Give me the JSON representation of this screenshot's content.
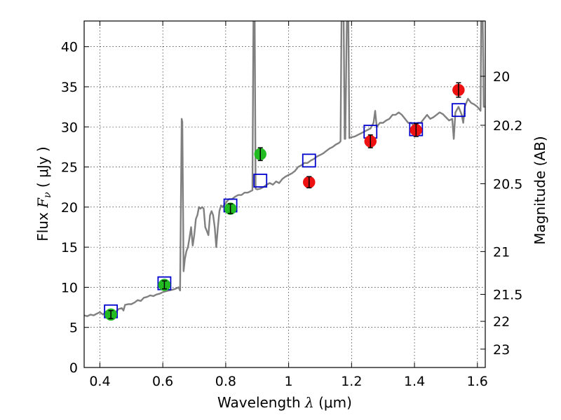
{
  "chart_data": {
    "type": "scatter",
    "title": "",
    "xlabel": {
      "prefix": "Wavelength ",
      "symbol": "λ",
      "unit_open": " (",
      "unit": "μm",
      "unit_close": ")"
    },
    "ylabel": {
      "prefix": "Flux ",
      "symbol": "F",
      "subscript": "ν",
      "unit_open": " ( ",
      "unit": "μJy",
      "unit_close": " )"
    },
    "y2label": "Magnitude (AB)",
    "xlim": [
      0.35,
      1.625
    ],
    "ylim": [
      0,
      43.2
    ],
    "grid": true,
    "colors": {
      "spectrum": "#808080",
      "model": "#0000cc",
      "green": "#22bb22",
      "red": "#ee1111",
      "errorbar": "#000000"
    },
    "x_ticks": [
      {
        "value": 0.4,
        "label": "0.4"
      },
      {
        "value": 0.6,
        "label": "0.6"
      },
      {
        "value": 0.8,
        "label": "0.8"
      },
      {
        "value": 1.0,
        "label": "1"
      },
      {
        "value": 1.2,
        "label": "1.2"
      },
      {
        "value": 1.4,
        "label": "1.4"
      },
      {
        "value": 1.6,
        "label": "1.6"
      }
    ],
    "y_ticks": [
      {
        "value": 0,
        "label": "0"
      },
      {
        "value": 5,
        "label": "5"
      },
      {
        "value": 10,
        "label": "10"
      },
      {
        "value": 15,
        "label": "15"
      },
      {
        "value": 20,
        "label": "20"
      },
      {
        "value": 25,
        "label": "25"
      },
      {
        "value": 30,
        "label": "30"
      },
      {
        "value": 35,
        "label": "35"
      },
      {
        "value": 40,
        "label": "40"
      }
    ],
    "y2_ticks": [
      {
        "mag": 20,
        "label": "20"
      },
      {
        "mag": 20.2,
        "label": "20.2"
      },
      {
        "mag": 20.5,
        "label": "20.5"
      },
      {
        "mag": 21,
        "label": "21"
      },
      {
        "mag": 21.5,
        "label": "21.5"
      },
      {
        "mag": 22,
        "label": "22"
      },
      {
        "mag": 23,
        "label": "23"
      }
    ],
    "series": [
      {
        "name": "spectrum",
        "kind": "line",
        "points": [
          [
            0.35,
            6.5
          ],
          [
            0.36,
            6.4
          ],
          [
            0.37,
            6.6
          ],
          [
            0.38,
            6.5
          ],
          [
            0.39,
            6.7
          ],
          [
            0.4,
            6.9
          ],
          [
            0.41,
            6.6
          ],
          [
            0.42,
            7.0
          ],
          [
            0.43,
            6.8
          ],
          [
            0.44,
            7.1
          ],
          [
            0.45,
            6.9
          ],
          [
            0.46,
            7.3
          ],
          [
            0.47,
            7.4
          ],
          [
            0.475,
            7.1
          ],
          [
            0.48,
            7.8
          ],
          [
            0.49,
            7.9
          ],
          [
            0.5,
            7.9
          ],
          [
            0.51,
            8.1
          ],
          [
            0.52,
            8.4
          ],
          [
            0.53,
            8.3
          ],
          [
            0.54,
            8.7
          ],
          [
            0.55,
            8.8
          ],
          [
            0.56,
            9.0
          ],
          [
            0.57,
            8.9
          ],
          [
            0.58,
            9.1
          ],
          [
            0.59,
            9.2
          ],
          [
            0.6,
            9.4
          ],
          [
            0.61,
            9.5
          ],
          [
            0.62,
            9.6
          ],
          [
            0.63,
            9.7
          ],
          [
            0.64,
            9.8
          ],
          [
            0.65,
            10.0
          ],
          [
            0.655,
            9.6
          ],
          [
            0.66,
            31.0
          ],
          [
            0.662,
            30.6
          ],
          [
            0.666,
            12.0
          ],
          [
            0.67,
            13.5
          ],
          [
            0.675,
            14.5
          ],
          [
            0.68,
            15.0
          ],
          [
            0.685,
            16.2
          ],
          [
            0.69,
            17.5
          ],
          [
            0.695,
            15.2
          ],
          [
            0.7,
            16.5
          ],
          [
            0.705,
            18.5
          ],
          [
            0.71,
            19.0
          ],
          [
            0.715,
            20.0
          ],
          [
            0.72,
            19.8
          ],
          [
            0.725,
            20.0
          ],
          [
            0.73,
            19.8
          ],
          [
            0.735,
            17.5
          ],
          [
            0.74,
            17.0
          ],
          [
            0.745,
            16.5
          ],
          [
            0.75,
            19.0
          ],
          [
            0.755,
            19.5
          ],
          [
            0.76,
            19.0
          ],
          [
            0.765,
            17.5
          ],
          [
            0.77,
            15.0
          ],
          [
            0.775,
            17.5
          ],
          [
            0.78,
            19.5
          ],
          [
            0.785,
            20.2
          ],
          [
            0.79,
            20.0
          ],
          [
            0.8,
            20.5
          ],
          [
            0.81,
            21.0
          ],
          [
            0.82,
            21.0
          ],
          [
            0.83,
            21.3
          ],
          [
            0.84,
            21.5
          ],
          [
            0.85,
            21.5
          ],
          [
            0.86,
            21.8
          ],
          [
            0.87,
            21.8
          ],
          [
            0.88,
            22.0
          ],
          [
            0.885,
            22.1
          ],
          [
            0.888,
            43.2
          ],
          [
            0.892,
            43.2
          ],
          [
            0.895,
            22.3
          ],
          [
            0.9,
            22.2
          ],
          [
            0.91,
            22.3
          ],
          [
            0.92,
            22.5
          ],
          [
            0.93,
            22.8
          ],
          [
            0.94,
            23.0
          ],
          [
            0.95,
            22.8
          ],
          [
            0.96,
            23.2
          ],
          [
            0.97,
            23.0
          ],
          [
            0.98,
            23.5
          ],
          [
            0.99,
            23.8
          ],
          [
            1.0,
            24.0
          ],
          [
            1.01,
            24.2
          ],
          [
            1.02,
            24.5
          ],
          [
            1.03,
            25.0
          ],
          [
            1.04,
            25.2
          ],
          [
            1.05,
            25.5
          ],
          [
            1.06,
            25.5
          ],
          [
            1.07,
            25.8
          ],
          [
            1.08,
            26.0
          ],
          [
            1.09,
            26.3
          ],
          [
            1.1,
            26.5
          ],
          [
            1.11,
            26.7
          ],
          [
            1.12,
            27.0
          ],
          [
            1.13,
            27.3
          ],
          [
            1.14,
            27.5
          ],
          [
            1.15,
            27.8
          ],
          [
            1.16,
            28.0
          ],
          [
            1.165,
            28.2
          ],
          [
            1.168,
            43.2
          ],
          [
            1.175,
            43.2
          ],
          [
            1.178,
            28.5
          ],
          [
            1.18,
            28.5
          ],
          [
            1.185,
            43.2
          ],
          [
            1.19,
            43.2
          ],
          [
            1.193,
            28.6
          ],
          [
            1.2,
            28.7
          ],
          [
            1.21,
            28.8
          ],
          [
            1.22,
            29.0
          ],
          [
            1.23,
            29.2
          ],
          [
            1.24,
            29.4
          ],
          [
            1.25,
            29.6
          ],
          [
            1.26,
            29.8
          ],
          [
            1.27,
            30.5
          ],
          [
            1.275,
            32.0
          ],
          [
            1.28,
            30.0
          ],
          [
            1.29,
            30.5
          ],
          [
            1.3,
            30.5
          ],
          [
            1.31,
            30.8
          ],
          [
            1.32,
            31.0
          ],
          [
            1.33,
            31.5
          ],
          [
            1.34,
            31.5
          ],
          [
            1.35,
            31.8
          ],
          [
            1.36,
            31.5
          ],
          [
            1.37,
            31.0
          ],
          [
            1.38,
            30.5
          ],
          [
            1.39,
            30.5
          ],
          [
            1.4,
            30.0
          ],
          [
            1.41,
            30.5
          ],
          [
            1.42,
            30.5
          ],
          [
            1.43,
            31.0
          ],
          [
            1.44,
            31.5
          ],
          [
            1.45,
            31.0
          ],
          [
            1.46,
            31.2
          ],
          [
            1.47,
            31.5
          ],
          [
            1.48,
            31.8
          ],
          [
            1.49,
            31.6
          ],
          [
            1.5,
            31.2
          ],
          [
            1.51,
            30.8
          ],
          [
            1.52,
            31.0
          ],
          [
            1.525,
            28.5
          ],
          [
            1.53,
            31.8
          ],
          [
            1.54,
            32.5
          ],
          [
            1.55,
            31.5
          ],
          [
            1.555,
            30.5
          ],
          [
            1.56,
            32.5
          ],
          [
            1.57,
            33.5
          ],
          [
            1.58,
            33.0
          ],
          [
            1.59,
            32.8
          ],
          [
            1.6,
            32.5
          ],
          [
            1.61,
            32.0
          ],
          [
            1.612,
            43.2
          ],
          [
            1.617,
            43.2
          ],
          [
            1.62,
            32.5
          ],
          [
            1.625,
            32.5
          ]
        ]
      },
      {
        "name": "model",
        "kind": "open-square",
        "points": [
          [
            0.435,
            7.0
          ],
          [
            0.605,
            10.5
          ],
          [
            0.815,
            20.2
          ],
          [
            0.91,
            23.3
          ],
          [
            1.065,
            25.8
          ],
          [
            1.26,
            29.4
          ],
          [
            1.405,
            29.7
          ],
          [
            1.54,
            32.1
          ]
        ]
      },
      {
        "name": "observed-green",
        "kind": "circle",
        "points": [
          {
            "x": 0.435,
            "y": 6.6,
            "err": 0.5
          },
          {
            "x": 0.605,
            "y": 10.3,
            "err": 0.5
          },
          {
            "x": 0.815,
            "y": 19.8,
            "err": 0.6
          },
          {
            "x": 0.91,
            "y": 26.6,
            "err": 0.8
          }
        ]
      },
      {
        "name": "observed-red",
        "kind": "circle",
        "points": [
          {
            "x": 1.065,
            "y": 23.1,
            "err": 0.7
          },
          {
            "x": 1.26,
            "y": 28.2,
            "err": 0.8
          },
          {
            "x": 1.405,
            "y": 29.6,
            "err": 0.8
          },
          {
            "x": 1.54,
            "y": 34.6,
            "err": 0.9
          }
        ]
      }
    ]
  }
}
